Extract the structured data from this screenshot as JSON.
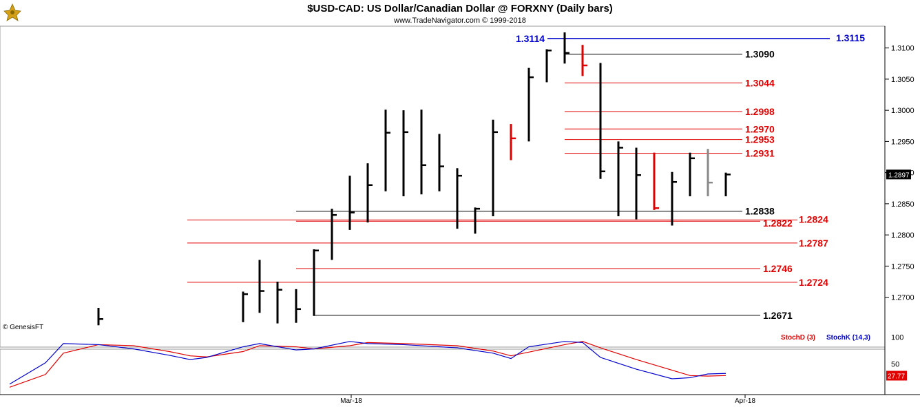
{
  "chart_data": {
    "type": "bar",
    "title": "$USD-CAD:  US Dollar/Canadian Dollar @ FORXNY  (Daily bars)",
    "subtitle": "www.TradeNavigator.com © 1999-2018",
    "watermark": "© GenesisFT",
    "x_labels": [
      "Mar-18",
      "Apr-18"
    ],
    "y_ticks": [
      1.27,
      1.275,
      1.28,
      1.285,
      1.29,
      1.295,
      1.3,
      1.305,
      1.31
    ],
    "ylim": [
      1.262,
      1.3135
    ],
    "last_price_label": "1.2897",
    "bars": [
      {
        "high": 1.2683,
        "low": 1.2655,
        "close": 1.2665,
        "color": "#000000"
      },
      {
        "high": 1.2709,
        "low": 1.266,
        "close": 1.2705,
        "color": "#000000"
      },
      {
        "high": 1.276,
        "low": 1.2675,
        "close": 1.271,
        "color": "#000000"
      },
      {
        "high": 1.2725,
        "low": 1.2658,
        "close": 1.2712,
        "color": "#000000"
      },
      {
        "high": 1.2713,
        "low": 1.2659,
        "close": 1.2681,
        "color": "#000000"
      },
      {
        "high": 1.2777,
        "low": 1.267,
        "close": 1.2775,
        "color": "#000000"
      },
      {
        "high": 1.2842,
        "low": 1.276,
        "close": 1.2832,
        "color": "#000000"
      },
      {
        "high": 1.2895,
        "low": 1.2808,
        "close": 1.2836,
        "color": "#000000"
      },
      {
        "high": 1.2915,
        "low": 1.282,
        "close": 1.288,
        "color": "#000000"
      },
      {
        "high": 1.3001,
        "low": 1.287,
        "close": 1.2964,
        "color": "#000000"
      },
      {
        "high": 1.3,
        "low": 1.2862,
        "close": 1.2965,
        "color": "#000000"
      },
      {
        "high": 1.3001,
        "low": 1.2865,
        "close": 1.2912,
        "color": "#000000"
      },
      {
        "high": 1.2962,
        "low": 1.287,
        "close": 1.291,
        "color": "#000000"
      },
      {
        "high": 1.2907,
        "low": 1.281,
        "close": 1.2895,
        "color": "#000000"
      },
      {
        "high": 1.2844,
        "low": 1.2802,
        "close": 1.2842,
        "color": "#000000"
      },
      {
        "high": 1.2985,
        "low": 1.283,
        "close": 1.2965,
        "color": "#000000"
      },
      {
        "high": 1.2978,
        "low": 1.292,
        "close": 1.2955,
        "color": "#e00000"
      },
      {
        "high": 1.3068,
        "low": 1.295,
        "close": 1.3053,
        "color": "#000000"
      },
      {
        "high": 1.3098,
        "low": 1.3045,
        "close": 1.3096,
        "color": "#000000"
      },
      {
        "high": 1.3125,
        "low": 1.3075,
        "close": 1.3092,
        "color": "#000000"
      },
      {
        "high": 1.3105,
        "low": 1.3055,
        "close": 1.3072,
        "color": "#e00000"
      },
      {
        "high": 1.3076,
        "low": 1.289,
        "close": 1.2902,
        "color": "#000000"
      },
      {
        "high": 1.295,
        "low": 1.283,
        "close": 1.294,
        "color": "#000000"
      },
      {
        "high": 1.294,
        "low": 1.2825,
        "close": 1.2896,
        "color": "#000000"
      },
      {
        "high": 1.2932,
        "low": 1.284,
        "close": 1.2843,
        "color": "#e00000"
      },
      {
        "high": 1.2901,
        "low": 1.2815,
        "close": 1.2885,
        "color": "#000000"
      },
      {
        "high": 1.2932,
        "low": 1.2862,
        "close": 1.2923,
        "color": "#000000"
      },
      {
        "high": 1.2938,
        "low": 1.2862,
        "close": 1.2884,
        "color": "#888888"
      },
      {
        "high": 1.29,
        "low": 1.2862,
        "close": 1.2897,
        "color": "#000000"
      }
    ],
    "levels": [
      {
        "price": 1.3115,
        "label": "1.3115",
        "color": "#0000cc"
      },
      {
        "price": 1.3114,
        "label": "1.3114",
        "color": "#0000cc"
      },
      {
        "price": 1.309,
        "label": "1.3090",
        "color": "#000000"
      },
      {
        "price": 1.3044,
        "label": "1.3044",
        "color": "#e00000"
      },
      {
        "price": 1.2998,
        "label": "1.2998",
        "color": "#e00000"
      },
      {
        "price": 1.297,
        "label": "1.2970",
        "color": "#e00000"
      },
      {
        "price": 1.2953,
        "label": "1.2953",
        "color": "#e00000"
      },
      {
        "price": 1.2931,
        "label": "1.2931",
        "color": "#e00000"
      },
      {
        "price": 1.2838,
        "label": "1.2838",
        "color": "#000000"
      },
      {
        "price": 1.2824,
        "label": "1.2824",
        "color": "#e00000"
      },
      {
        "price": 1.2822,
        "label": "1.2822",
        "color": "#e00000"
      },
      {
        "price": 1.2787,
        "label": "1.2787",
        "color": "#e00000"
      },
      {
        "price": 1.2746,
        "label": "1.2746",
        "color": "#e00000"
      },
      {
        "price": 1.2724,
        "label": "1.2724",
        "color": "#e00000"
      },
      {
        "price": 1.2671,
        "label": "1.2671",
        "color": "#000000"
      }
    ],
    "stochastic": {
      "legend": [
        {
          "name": "StochD (3)",
          "color": "#e00000"
        },
        {
          "name": "StochK (14,3)",
          "color": "#0000cc"
        }
      ],
      "y_ticks": [
        50,
        100
      ],
      "ylim": [
        0,
        115
      ],
      "last_value_label": "27.77",
      "k_values": [
        12,
        52,
        88,
        86,
        78,
        66,
        58,
        62,
        82,
        88,
        76,
        78,
        92,
        88,
        86,
        80,
        70,
        60,
        82,
        92,
        90,
        62,
        40,
        22,
        24,
        31,
        32
      ],
      "d_values": [
        6,
        30,
        70,
        86,
        84,
        73,
        65,
        63,
        73,
        84,
        82,
        78,
        84,
        90,
        88,
        84,
        74,
        65,
        72,
        86,
        92,
        80,
        58,
        38,
        28,
        27,
        28
      ]
    }
  }
}
